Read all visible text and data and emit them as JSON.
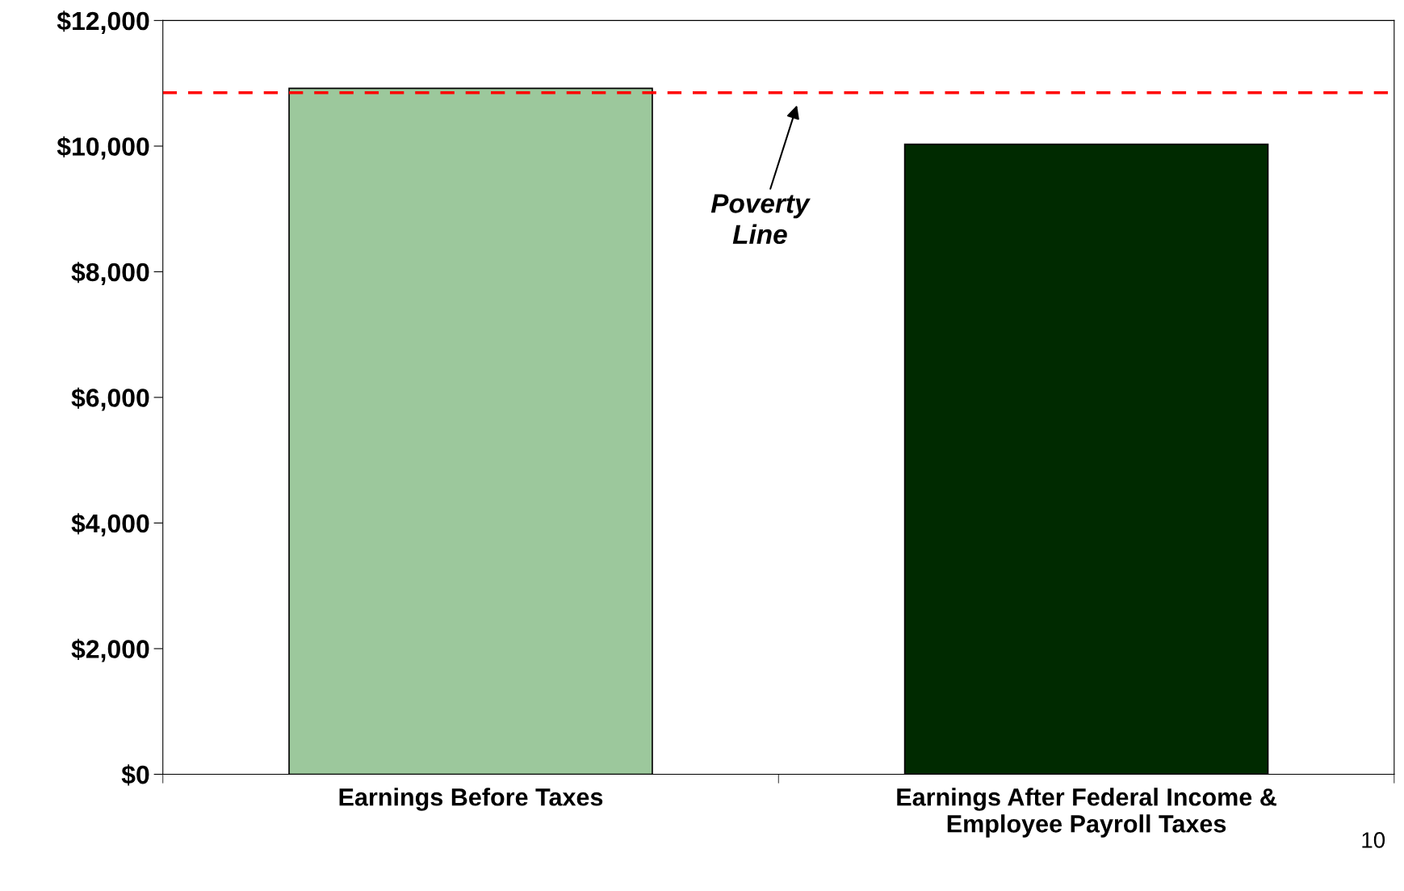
{
  "chart_data": {
    "type": "bar",
    "categories": [
      "Earnings Before Taxes",
      "Earnings After Federal Income &\nEmployee Payroll Taxes"
    ],
    "values": [
      10920,
      10030
    ],
    "colors": [
      "#9cc89c",
      "#002a00"
    ],
    "ylim": [
      0,
      12000
    ],
    "yticks": [
      {
        "value": 0,
        "label": "$0"
      },
      {
        "value": 2000,
        "label": "$2,000"
      },
      {
        "value": 4000,
        "label": "$4,000"
      },
      {
        "value": 6000,
        "label": "$6,000"
      },
      {
        "value": 8000,
        "label": "$8,000"
      },
      {
        "value": 10000,
        "label": "$10,000"
      },
      {
        "value": 12000,
        "label": "$12,000"
      }
    ],
    "ref_lines": [
      {
        "axis": "y",
        "value": 10850,
        "color": "#ff0000",
        "line_style": "dashed"
      }
    ],
    "annotations": [
      "Poverty\nLine",
      "10"
    ],
    "grid": false,
    "legend": false
  }
}
